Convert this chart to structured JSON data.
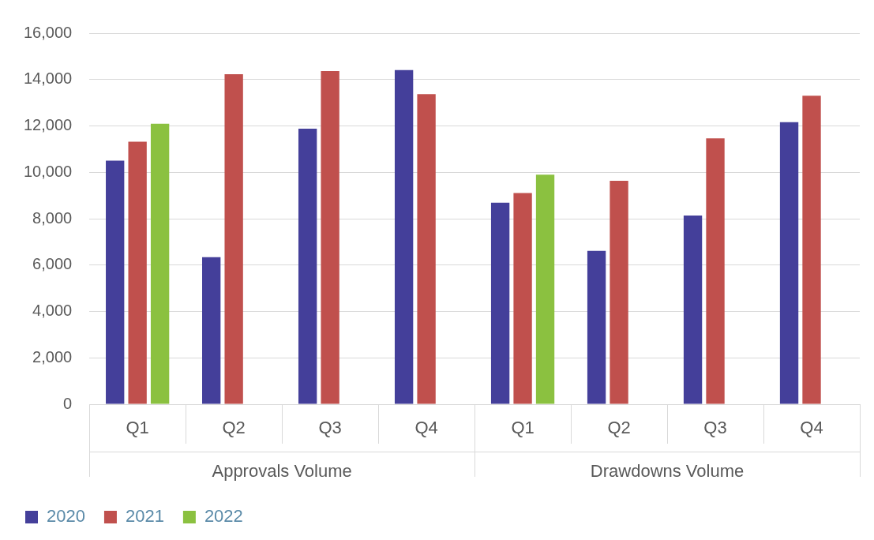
{
  "chart_data": {
    "type": "bar",
    "categories": [
      "Q1",
      "Q2",
      "Q3",
      "Q4",
      "Q1",
      "Q2",
      "Q3",
      "Q4"
    ],
    "series": [
      {
        "name": "2020",
        "color": "#443f9a",
        "values": [
          10500,
          6340,
          11880,
          14410,
          8690,
          6610,
          8140,
          12160
        ]
      },
      {
        "name": "2021",
        "color": "#c0504d",
        "values": [
          11320,
          14230,
          14370,
          13370,
          9110,
          9630,
          11460,
          13300
        ]
      },
      {
        "name": "2022",
        "color": "#8bc140",
        "values": [
          12090,
          null,
          null,
          null,
          9900,
          null,
          null,
          null
        ]
      }
    ],
    "annotations": [
      "Approvals Volume",
      "Drawdowns Volume"
    ],
    "ylim": [
      0,
      16000
    ],
    "yticks": [
      0,
      {
        "value": 2000,
        "label": "2,000"
      },
      {
        "value": 4000,
        "label": "4,000"
      },
      {
        "value": 6000,
        "label": "6,000"
      },
      {
        "value": 8000,
        "label": "8,000"
      },
      {
        "value": 10000,
        "label": "10,000"
      },
      {
        "value": 12000,
        "label": "12,000"
      },
      {
        "value": 14000,
        "label": "14,000"
      },
      {
        "value": 16000,
        "label": "16,000"
      }
    ],
    "grid": "y",
    "legend": "bottom left"
  }
}
